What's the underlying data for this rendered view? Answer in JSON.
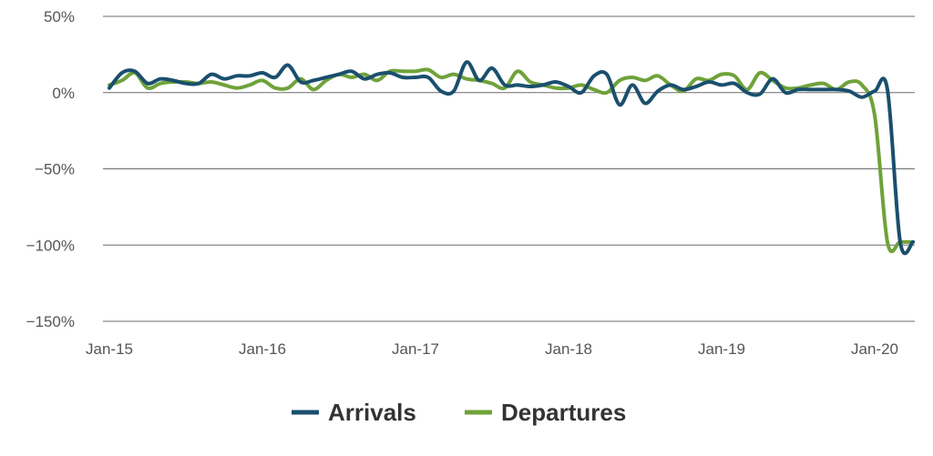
{
  "colors": {
    "arrivals": "#1a4f6e",
    "departures": "#6fa23a",
    "grid": "#6b6b6b",
    "axis_text": "#555555",
    "legend_text": "#333333"
  },
  "chart_data": {
    "type": "line",
    "title": "",
    "xlabel": "",
    "ylabel": "",
    "x_ticks": [
      "Jan-15",
      "Jan-16",
      "Jan-17",
      "Jan-18",
      "Jan-19",
      "Jan-20"
    ],
    "y_ticks": [
      "50%",
      "0%",
      "−50%",
      "−100%",
      "−150%"
    ],
    "y_tick_values": [
      50,
      0,
      -50,
      -100,
      -150
    ],
    "ylim": [
      -150,
      50
    ],
    "xlim": [
      0,
      64
    ],
    "grid": "horizontal",
    "legend_position": "bottom-center",
    "series": [
      {
        "name": "Arrivals",
        "x": [
          0,
          1,
          2,
          3,
          4,
          5,
          6,
          7,
          8,
          9,
          10,
          11,
          12,
          13,
          14,
          15,
          16,
          17,
          18,
          19,
          20,
          21,
          22,
          23,
          24,
          25,
          26,
          27,
          28,
          29,
          30,
          31,
          32,
          33,
          34,
          35,
          36,
          37,
          38,
          39,
          40,
          41,
          42,
          43,
          44,
          45,
          46,
          47,
          48,
          49,
          50,
          51,
          52,
          53,
          54,
          55,
          56,
          57,
          58,
          59,
          60,
          61,
          62,
          63
        ],
        "values": [
          3,
          13,
          14,
          6,
          9,
          8,
          6,
          6,
          12,
          9,
          11,
          11,
          13,
          10,
          18,
          7,
          8,
          10,
          12,
          14,
          9,
          12,
          13,
          10,
          10,
          10,
          1,
          1,
          20,
          8,
          16,
          5,
          5,
          4,
          5,
          7,
          4,
          0,
          11,
          12,
          -8,
          5,
          -7,
          1,
          5,
          2,
          4,
          7,
          5,
          6,
          0,
          -1,
          9,
          0,
          2,
          2,
          2,
          2,
          1,
          -3,
          1,
          2,
          -98,
          -98
        ]
      },
      {
        "name": "Departures",
        "x": [
          0,
          1,
          2,
          3,
          4,
          5,
          6,
          7,
          8,
          9,
          10,
          11,
          12,
          13,
          14,
          15,
          16,
          17,
          18,
          19,
          20,
          21,
          22,
          23,
          24,
          25,
          26,
          27,
          28,
          29,
          30,
          31,
          32,
          33,
          34,
          35,
          36,
          37,
          38,
          39,
          40,
          41,
          42,
          43,
          44,
          45,
          46,
          47,
          48,
          49,
          50,
          51,
          52,
          53,
          54,
          55,
          56,
          57,
          58,
          59,
          60,
          61,
          62,
          63
        ],
        "values": [
          5,
          8,
          13,
          3,
          6,
          7,
          7,
          6,
          7,
          5,
          3,
          5,
          8,
          3,
          3,
          9,
          2,
          8,
          12,
          10,
          12,
          8,
          14,
          14,
          14,
          15,
          10,
          12,
          9,
          8,
          6,
          3,
          14,
          7,
          5,
          3,
          3,
          5,
          2,
          0,
          8,
          10,
          8,
          11,
          5,
          1,
          9,
          8,
          12,
          11,
          2,
          13,
          8,
          3,
          3,
          5,
          6,
          2,
          7,
          5,
          -15,
          -98,
          -98,
          -98
        ]
      }
    ]
  }
}
